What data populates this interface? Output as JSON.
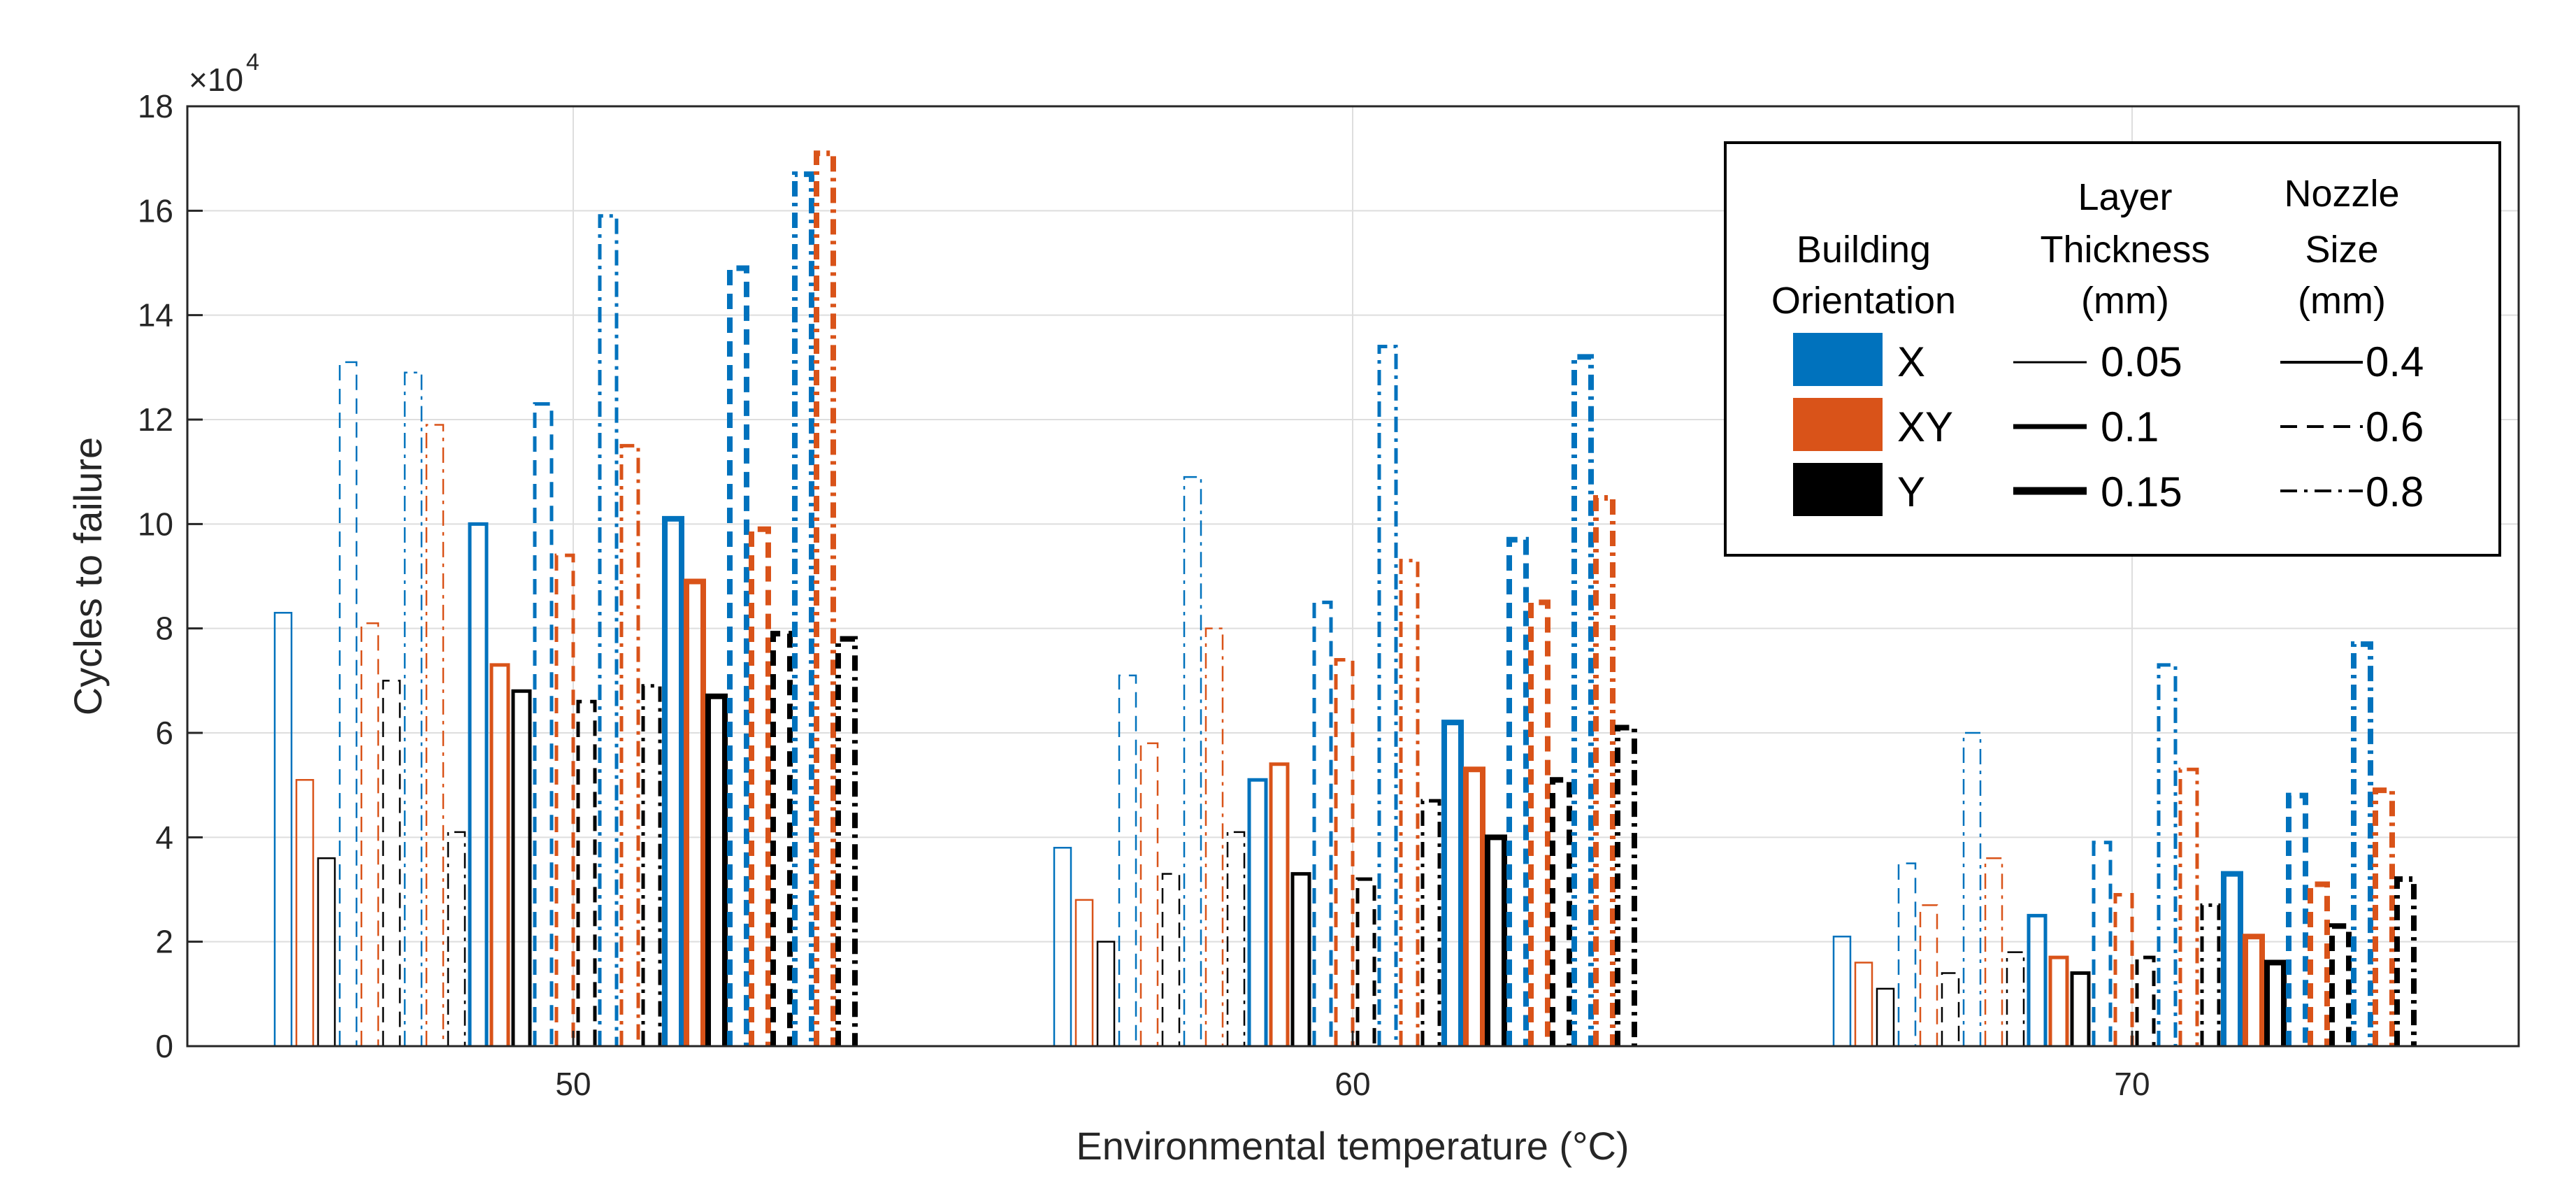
{
  "chart_data": {
    "type": "bar",
    "title": "",
    "xlabel": "Environmental temperature (°C)",
    "ylabel": "Cycles to failure",
    "exponent_label": "×10",
    "exponent_power": "4",
    "ylim": [
      0,
      18
    ],
    "yticks": [
      "0",
      "2",
      "4",
      "6",
      "8",
      "10",
      "12",
      "14",
      "16",
      "18"
    ],
    "grid": true,
    "categories": [
      "50",
      "60",
      "70"
    ],
    "series_order": "layer thickness, then nozzle size, then building orientation",
    "series": [
      {
        "orientation": "X",
        "layer": "0.05",
        "nozzle": "0.4",
        "values": [
          8.3,
          3.8,
          2.1
        ]
      },
      {
        "orientation": "XY",
        "layer": "0.05",
        "nozzle": "0.4",
        "values": [
          5.1,
          2.8,
          1.6
        ]
      },
      {
        "orientation": "Y",
        "layer": "0.05",
        "nozzle": "0.4",
        "values": [
          3.6,
          2.0,
          1.1
        ]
      },
      {
        "orientation": "X",
        "layer": "0.05",
        "nozzle": "0.6",
        "values": [
          13.1,
          7.1,
          3.5
        ]
      },
      {
        "orientation": "XY",
        "layer": "0.05",
        "nozzle": "0.6",
        "values": [
          8.1,
          5.8,
          2.7
        ]
      },
      {
        "orientation": "Y",
        "layer": "0.05",
        "nozzle": "0.6",
        "values": [
          7.0,
          3.3,
          1.4
        ]
      },
      {
        "orientation": "X",
        "layer": "0.05",
        "nozzle": "0.8",
        "values": [
          12.9,
          10.9,
          6.0
        ]
      },
      {
        "orientation": "XY",
        "layer": "0.05",
        "nozzle": "0.8",
        "values": [
          11.9,
          8.0,
          3.6
        ]
      },
      {
        "orientation": "Y",
        "layer": "0.05",
        "nozzle": "0.8",
        "values": [
          4.1,
          4.1,
          1.8
        ]
      },
      {
        "orientation": "X",
        "layer": "0.1",
        "nozzle": "0.4",
        "values": [
          10.0,
          5.1,
          2.5
        ]
      },
      {
        "orientation": "XY",
        "layer": "0.1",
        "nozzle": "0.4",
        "values": [
          7.3,
          5.4,
          1.7
        ]
      },
      {
        "orientation": "Y",
        "layer": "0.1",
        "nozzle": "0.4",
        "values": [
          6.8,
          3.3,
          1.4
        ]
      },
      {
        "orientation": "X",
        "layer": "0.1",
        "nozzle": "0.6",
        "values": [
          12.3,
          8.5,
          3.9
        ]
      },
      {
        "orientation": "XY",
        "layer": "0.1",
        "nozzle": "0.6",
        "values": [
          9.4,
          7.4,
          2.9
        ]
      },
      {
        "orientation": "Y",
        "layer": "0.1",
        "nozzle": "0.6",
        "values": [
          6.6,
          3.2,
          1.7
        ]
      },
      {
        "orientation": "X",
        "layer": "0.1",
        "nozzle": "0.8",
        "values": [
          15.9,
          13.4,
          7.3
        ]
      },
      {
        "orientation": "XY",
        "layer": "0.1",
        "nozzle": "0.8",
        "values": [
          11.5,
          9.3,
          5.3
        ]
      },
      {
        "orientation": "Y",
        "layer": "0.1",
        "nozzle": "0.8",
        "values": [
          6.9,
          4.7,
          2.7
        ]
      },
      {
        "orientation": "X",
        "layer": "0.15",
        "nozzle": "0.4",
        "values": [
          10.1,
          6.2,
          3.3
        ]
      },
      {
        "orientation": "XY",
        "layer": "0.15",
        "nozzle": "0.4",
        "values": [
          8.9,
          5.3,
          2.1
        ]
      },
      {
        "orientation": "Y",
        "layer": "0.15",
        "nozzle": "0.4",
        "values": [
          6.7,
          4.0,
          1.6
        ]
      },
      {
        "orientation": "X",
        "layer": "0.15",
        "nozzle": "0.6",
        "values": [
          14.9,
          9.7,
          4.8
        ]
      },
      {
        "orientation": "XY",
        "layer": "0.15",
        "nozzle": "0.6",
        "values": [
          9.9,
          8.5,
          3.1
        ]
      },
      {
        "orientation": "Y",
        "layer": "0.15",
        "nozzle": "0.6",
        "values": [
          7.9,
          5.1,
          2.3
        ]
      },
      {
        "orientation": "X",
        "layer": "0.15",
        "nozzle": "0.8",
        "values": [
          16.7,
          13.2,
          7.7
        ]
      },
      {
        "orientation": "XY",
        "layer": "0.15",
        "nozzle": "0.8",
        "values": [
          17.1,
          10.5,
          4.9
        ]
      },
      {
        "orientation": "Y",
        "layer": "0.15",
        "nozzle": "0.8",
        "values": [
          7.8,
          6.1,
          3.2
        ]
      }
    ],
    "colors": {
      "X": "#0072BD",
      "XY": "#D95319",
      "Y": "#000000",
      "grid": "#dedede",
      "axis": "#262626"
    },
    "legend": {
      "placement": "top-right",
      "orientation_header": [
        "Building",
        "Orientation"
      ],
      "layer_header": [
        "Layer",
        "Thickness",
        "(mm)"
      ],
      "nozzle_header": [
        "Nozzle",
        "Size",
        "(mm)"
      ],
      "orientations": [
        "X",
        "XY",
        "Y"
      ],
      "layers": [
        "0.05",
        "0.1",
        "0.15"
      ],
      "nozzles": [
        "0.4",
        "0.6",
        "0.8"
      ]
    }
  }
}
